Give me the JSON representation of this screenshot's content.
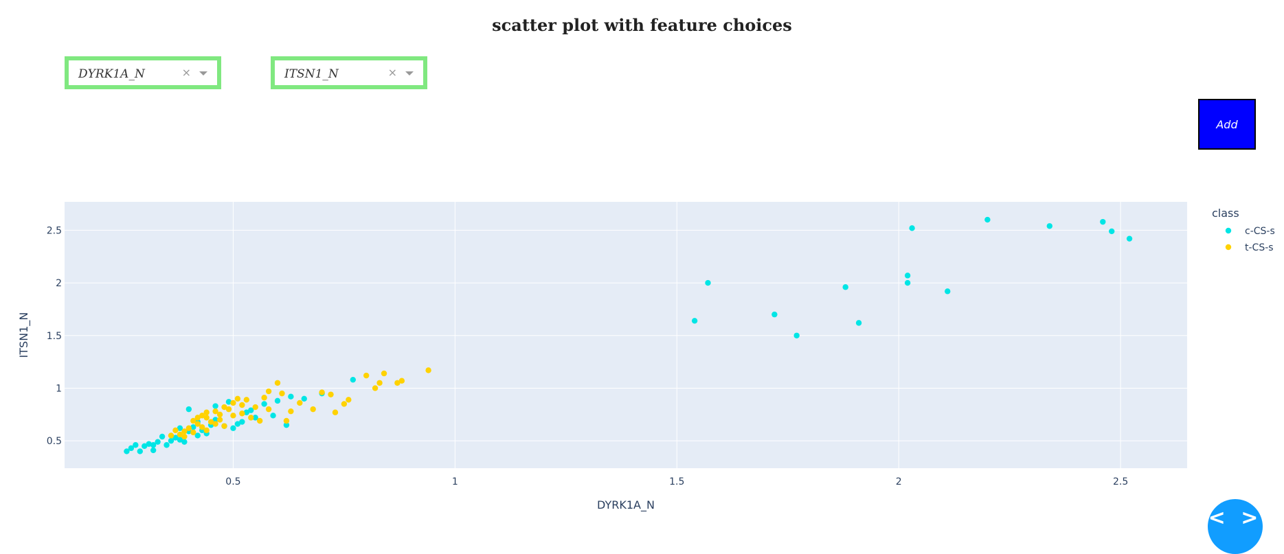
{
  "page": {
    "title": "scatter plot with feature choices",
    "x_dropdown": {
      "value": "DYRK1A_N",
      "clear": "×"
    },
    "y_dropdown": {
      "value": "ITSN1_N",
      "clear": "×"
    },
    "add_button": "Add",
    "code_toggle": "< >"
  },
  "colors": {
    "plot_bg": "#e5ecf6",
    "grid": "#ffffff",
    "dropdown_border": "#80e880",
    "add_button_bg": "#0000ff",
    "c-CS-s": "#00e5e5",
    "t-CS-s": "#ffd200"
  },
  "chart_data": {
    "type": "scatter",
    "xlabel": "DYRK1A_N",
    "ylabel": "ITSN1_N",
    "xlim": [
      0.12,
      2.65
    ],
    "ylim": [
      0.24,
      2.77
    ],
    "xticks": [
      0.5,
      1,
      1.5,
      2,
      2.5
    ],
    "xtick_labels": [
      "0.5",
      "1",
      "1.5",
      "2",
      "2.5"
    ],
    "yticks": [
      0.5,
      1,
      1.5,
      2,
      2.5
    ],
    "ytick_labels": [
      "0.5",
      "1",
      "1.5",
      "2",
      "2.5"
    ],
    "grid": true,
    "legend": {
      "title": "class",
      "placement": "right"
    },
    "series": [
      {
        "name": "c-CS-s",
        "color": "#00e5e5",
        "points": [
          [
            0.26,
            0.4
          ],
          [
            0.27,
            0.43
          ],
          [
            0.28,
            0.46
          ],
          [
            0.29,
            0.4
          ],
          [
            0.3,
            0.45
          ],
          [
            0.31,
            0.47
          ],
          [
            0.32,
            0.46
          ],
          [
            0.32,
            0.41
          ],
          [
            0.33,
            0.49
          ],
          [
            0.34,
            0.54
          ],
          [
            0.35,
            0.46
          ],
          [
            0.36,
            0.5
          ],
          [
            0.37,
            0.53
          ],
          [
            0.38,
            0.51
          ],
          [
            0.39,
            0.49
          ],
          [
            0.4,
            0.59
          ],
          [
            0.41,
            0.63
          ],
          [
            0.42,
            0.55
          ],
          [
            0.43,
            0.6
          ],
          [
            0.44,
            0.57
          ],
          [
            0.45,
            0.65
          ],
          [
            0.46,
            0.7
          ],
          [
            0.48,
            0.64
          ],
          [
            0.5,
            0.62
          ],
          [
            0.52,
            0.68
          ],
          [
            0.53,
            0.77
          ],
          [
            0.55,
            0.72
          ],
          [
            0.57,
            0.85
          ],
          [
            0.6,
            0.88
          ],
          [
            0.63,
            0.92
          ],
          [
            0.66,
            0.9
          ],
          [
            0.7,
            0.95
          ],
          [
            0.77,
            1.08
          ],
          [
            0.38,
            0.62
          ],
          [
            0.4,
            0.8
          ],
          [
            0.42,
            0.68
          ],
          [
            0.46,
            0.83
          ],
          [
            0.49,
            0.87
          ],
          [
            0.51,
            0.66
          ],
          [
            0.54,
            0.79
          ],
          [
            0.59,
            0.74
          ],
          [
            0.62,
            0.65
          ],
          [
            1.54,
            1.64
          ],
          [
            1.57,
            2.0
          ],
          [
            1.72,
            1.7
          ],
          [
            1.77,
            1.5
          ],
          [
            1.88,
            1.96
          ],
          [
            1.91,
            1.62
          ],
          [
            2.02,
            2.07
          ],
          [
            2.02,
            2.0
          ],
          [
            2.03,
            2.52
          ],
          [
            2.11,
            1.92
          ],
          [
            2.2,
            2.6
          ],
          [
            2.34,
            2.54
          ],
          [
            2.46,
            2.58
          ],
          [
            2.48,
            2.49
          ],
          [
            2.52,
            2.42
          ]
        ]
      },
      {
        "name": "t-CS-s",
        "color": "#ffd200",
        "points": [
          [
            0.36,
            0.55
          ],
          [
            0.37,
            0.6
          ],
          [
            0.38,
            0.56
          ],
          [
            0.39,
            0.59
          ],
          [
            0.4,
            0.62
          ],
          [
            0.41,
            0.69
          ],
          [
            0.42,
            0.66
          ],
          [
            0.43,
            0.74
          ],
          [
            0.44,
            0.72
          ],
          [
            0.45,
            0.68
          ],
          [
            0.46,
            0.78
          ],
          [
            0.47,
            0.75
          ],
          [
            0.48,
            0.82
          ],
          [
            0.49,
            0.8
          ],
          [
            0.5,
            0.86
          ],
          [
            0.51,
            0.9
          ],
          [
            0.52,
            0.84
          ],
          [
            0.53,
            0.89
          ],
          [
            0.55,
            0.82
          ],
          [
            0.57,
            0.91
          ],
          [
            0.58,
            0.97
          ],
          [
            0.6,
            1.05
          ],
          [
            0.61,
            0.95
          ],
          [
            0.62,
            0.69
          ],
          [
            0.63,
            0.78
          ],
          [
            0.65,
            0.86
          ],
          [
            0.68,
            0.8
          ],
          [
            0.7,
            0.96
          ],
          [
            0.72,
            0.94
          ],
          [
            0.73,
            0.77
          ],
          [
            0.75,
            0.85
          ],
          [
            0.76,
            0.89
          ],
          [
            0.8,
            1.12
          ],
          [
            0.82,
            1.0
          ],
          [
            0.83,
            1.05
          ],
          [
            0.84,
            1.14
          ],
          [
            0.87,
            1.05
          ],
          [
            0.88,
            1.07
          ],
          [
            0.94,
            1.17
          ],
          [
            0.39,
            0.54
          ],
          [
            0.41,
            0.58
          ],
          [
            0.43,
            0.63
          ],
          [
            0.44,
            0.6
          ],
          [
            0.46,
            0.66
          ],
          [
            0.47,
            0.7
          ],
          [
            0.48,
            0.64
          ],
          [
            0.5,
            0.74
          ],
          [
            0.52,
            0.76
          ],
          [
            0.54,
            0.72
          ],
          [
            0.56,
            0.69
          ],
          [
            0.58,
            0.8
          ],
          [
            0.44,
            0.77
          ],
          [
            0.42,
            0.72
          ]
        ]
      }
    ]
  }
}
